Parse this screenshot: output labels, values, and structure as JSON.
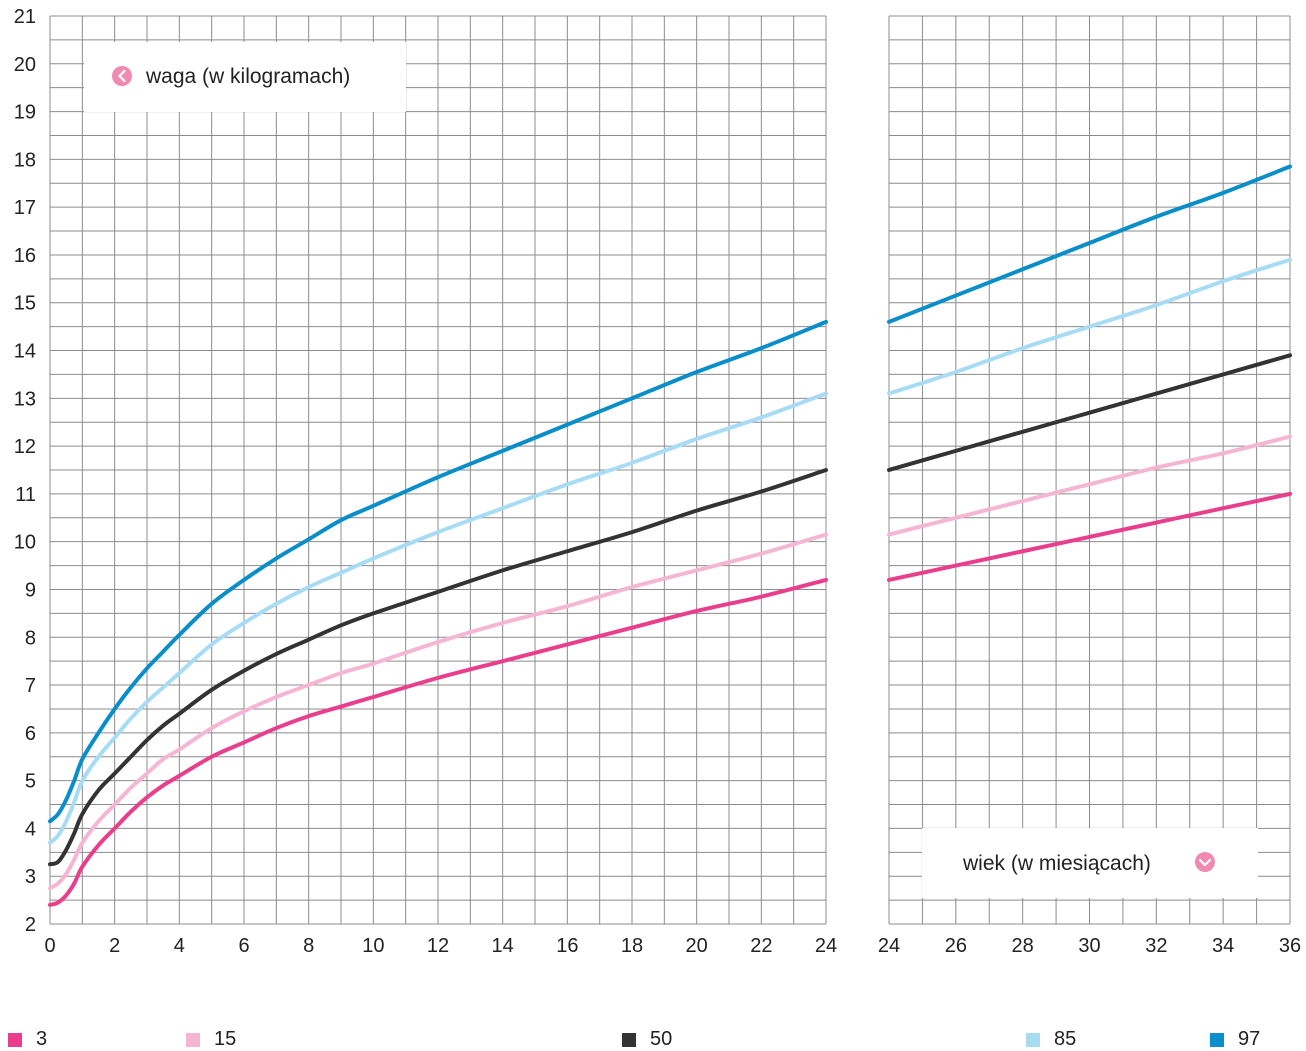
{
  "chart_data": [
    {
      "type": "line",
      "title": "",
      "xlabel": "",
      "ylabel": "waga (w kilogramach)",
      "xlim": [
        0,
        24
      ],
      "ylim": [
        2,
        21
      ],
      "x_ticks": [
        "0",
        "2",
        "4",
        "6",
        "8",
        "10",
        "12",
        "14",
        "16",
        "18",
        "20",
        "22",
        "24"
      ],
      "y_ticks": [
        "2",
        "3",
        "4",
        "5",
        "6",
        "7",
        "8",
        "9",
        "10",
        "11",
        "12",
        "13",
        "14",
        "15",
        "16",
        "17",
        "18",
        "19",
        "20",
        "21"
      ],
      "grid": true,
      "x": [
        0,
        0.25,
        0.5,
        0.75,
        1,
        1.5,
        2,
        2.5,
        3,
        3.5,
        4,
        5,
        6,
        7,
        8,
        9,
        10,
        12,
        14,
        16,
        18,
        20,
        22,
        24
      ],
      "series": [
        {
          "name": "3",
          "color": "#e83e8c",
          "values": [
            2.4,
            2.45,
            2.6,
            2.85,
            3.2,
            3.65,
            4.0,
            4.35,
            4.65,
            4.9,
            5.1,
            5.5,
            5.8,
            6.1,
            6.35,
            6.55,
            6.75,
            7.15,
            7.5,
            7.85,
            8.2,
            8.55,
            8.85,
            9.2
          ]
        },
        {
          "name": "15",
          "color": "#f5b6d3",
          "values": [
            2.75,
            2.85,
            3.05,
            3.35,
            3.7,
            4.15,
            4.5,
            4.85,
            5.15,
            5.45,
            5.65,
            6.1,
            6.45,
            6.75,
            7.0,
            7.25,
            7.45,
            7.9,
            8.3,
            8.65,
            9.05,
            9.4,
            9.75,
            10.15
          ]
        },
        {
          "name": "50",
          "color": "#333333",
          "values": [
            3.25,
            3.3,
            3.55,
            3.9,
            4.3,
            4.8,
            5.15,
            5.5,
            5.85,
            6.15,
            6.4,
            6.9,
            7.3,
            7.65,
            7.95,
            8.25,
            8.5,
            8.95,
            9.4,
            9.8,
            10.2,
            10.65,
            11.05,
            11.5
          ]
        },
        {
          "name": "85",
          "color": "#a8dcf5",
          "values": [
            3.7,
            3.85,
            4.15,
            4.55,
            5.0,
            5.5,
            5.9,
            6.3,
            6.65,
            6.95,
            7.25,
            7.85,
            8.3,
            8.7,
            9.05,
            9.35,
            9.65,
            10.2,
            10.7,
            11.2,
            11.65,
            12.15,
            12.6,
            13.1
          ]
        },
        {
          "name": "97",
          "color": "#0a8ec9",
          "values": [
            4.15,
            4.3,
            4.6,
            5.0,
            5.45,
            6.0,
            6.5,
            6.95,
            7.35,
            7.7,
            8.05,
            8.7,
            9.2,
            9.65,
            10.05,
            10.45,
            10.75,
            11.35,
            11.9,
            12.45,
            13.0,
            13.55,
            14.05,
            14.6
          ]
        }
      ]
    },
    {
      "type": "line",
      "title": "",
      "xlabel": "wiek (w miesiącach)",
      "ylabel": "",
      "xlim": [
        24,
        36
      ],
      "ylim": [
        2,
        21
      ],
      "x_ticks": [
        "24",
        "26",
        "28",
        "30",
        "32",
        "34",
        "36"
      ],
      "grid": true,
      "x": [
        24,
        26,
        28,
        30,
        32,
        34,
        36
      ],
      "series": [
        {
          "name": "3",
          "color": "#e83e8c",
          "values": [
            9.2,
            9.5,
            9.8,
            10.1,
            10.4,
            10.7,
            11.0
          ]
        },
        {
          "name": "15",
          "color": "#f5b6d3",
          "values": [
            10.15,
            10.5,
            10.85,
            11.2,
            11.55,
            11.85,
            12.2
          ]
        },
        {
          "name": "50",
          "color": "#333333",
          "values": [
            11.5,
            11.9,
            12.3,
            12.7,
            13.1,
            13.5,
            13.9
          ]
        },
        {
          "name": "85",
          "color": "#a8dcf5",
          "values": [
            13.1,
            13.55,
            14.05,
            14.5,
            14.95,
            15.45,
            15.9
          ]
        },
        {
          "name": "97",
          "color": "#0a8ec9",
          "values": [
            14.6,
            15.15,
            15.7,
            16.25,
            16.8,
            17.3,
            17.85
          ]
        }
      ]
    }
  ],
  "labels": {
    "weight_label": "waga (w kilogramach)",
    "age_label": "wiek (w miesiącach)",
    "icon_color": "#f08ab0"
  },
  "legend": [
    {
      "label": "3",
      "color": "#e83e8c"
    },
    {
      "label": "15",
      "color": "#f5b6d3"
    },
    {
      "label": "50",
      "color": "#333333"
    },
    {
      "label": "85",
      "color": "#a8dcf5"
    },
    {
      "label": "97",
      "color": "#0a8ec9"
    }
  ]
}
